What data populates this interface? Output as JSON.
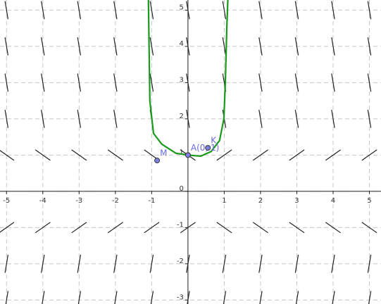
{
  "chart_data": {
    "type": "slope-field",
    "xlim": [
      -5.18,
      5.32
    ],
    "ylim": [
      -3.11,
      5.28
    ],
    "xticks": [
      -5,
      -4,
      -3,
      -2,
      -1,
      1,
      2,
      3,
      4,
      5
    ],
    "yticks": [
      -3,
      -2,
      -1,
      0,
      1,
      2,
      3,
      4,
      5
    ],
    "grid": true,
    "field": {
      "x": [
        -5,
        -4,
        -3,
        -2,
        -1,
        0,
        1,
        2,
        3,
        4,
        5
      ],
      "rows": [
        {
          "y": 5,
          "slopes": [
            -6,
            -6,
            -6,
            -6,
            -6,
            -6,
            -6,
            -6,
            -6,
            -6,
            -6
          ]
        },
        {
          "y": 4,
          "slopes": [
            -6,
            -6,
            -6,
            -6,
            -6,
            -6,
            -6,
            -6,
            -6,
            -6,
            -6
          ]
        },
        {
          "y": 3,
          "slopes": [
            -6,
            -6,
            -6,
            -6,
            -6,
            -6,
            -6,
            -6,
            -6,
            -6,
            -6
          ]
        },
        {
          "y": 2,
          "slopes": [
            -6,
            -6,
            -6,
            -6,
            -6,
            -6,
            -6,
            -6,
            -6,
            -6,
            -6
          ]
        },
        {
          "y": 1,
          "slopes": [
            -0.7,
            -0.7,
            -0.7,
            -0.7,
            -0.7,
            -0.7,
            0.7,
            0.7,
            0.7,
            0.7,
            0.7
          ]
        },
        {
          "y": -1,
          "slopes": [
            0.7,
            0.7,
            0.7,
            0.7,
            0.7,
            0.7,
            -0.7,
            -0.7,
            -0.7,
            -0.7,
            -0.7
          ]
        },
        {
          "y": -2,
          "slopes": [
            6,
            6,
            6,
            6,
            6,
            6,
            6,
            6,
            6,
            6,
            6
          ]
        },
        {
          "y": -3,
          "slopes": [
            6,
            6,
            6,
            6,
            6,
            6,
            6,
            6,
            6,
            6,
            6
          ]
        }
      ]
    },
    "series": [
      {
        "color": "#1a9a1a",
        "x": [
          -1.09,
          -1.05,
          -0.95,
          -0.72,
          -0.33,
          0,
          0.35,
          0.64,
          0.87,
          0.99,
          1.03,
          1.07,
          1.1
        ],
        "values": [
          5.3,
          2.5,
          1.6,
          1.3,
          1.05,
          1.0,
          0.97,
          1.1,
          1.4,
          2.0,
          3.0,
          4.5,
          5.3
        ]
      }
    ],
    "points": [
      {
        "label": "A(0, 1)",
        "x": 0,
        "y": 1
      },
      {
        "label": "M",
        "x": -0.85,
        "y": 0.85
      },
      {
        "label": "K",
        "x": 0.55,
        "y": 1.2
      }
    ]
  }
}
